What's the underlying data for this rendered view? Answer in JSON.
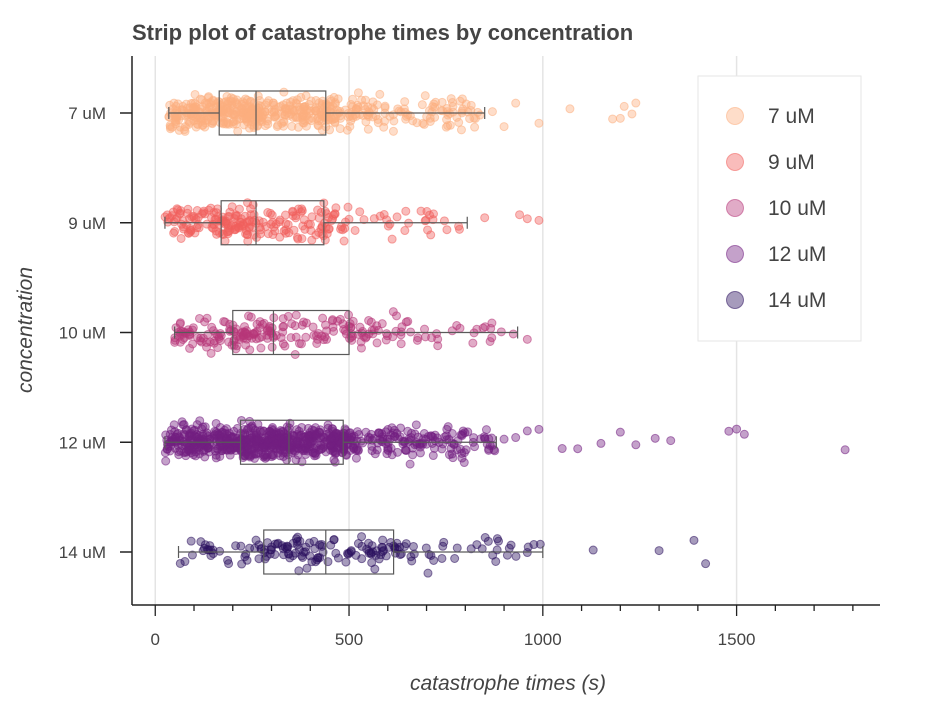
{
  "chart_data": {
    "type": "scatter",
    "subtype": "strip plot with box overlay",
    "title": "Strip plot of catastrophe times by concentration",
    "xlabel": "catastrophe times (s)",
    "ylabel": "concentration",
    "xlim": [
      -60,
      1870
    ],
    "xticks": [
      0,
      500,
      1000,
      1500
    ],
    "categories": [
      "7 uM",
      "9 uM",
      "10 uM",
      "12 uM",
      "14 uM"
    ],
    "grid": "vertical",
    "legend_position": "top-right",
    "series": [
      {
        "name": "7 uM",
        "color": "#fcae7f",
        "n": 530,
        "min": 30,
        "q1": 165,
        "median": 260,
        "q3": 440,
        "whisker_low": 35,
        "whisker_high": 850,
        "outliers": [
          870,
          900,
          930,
          990,
          1070,
          1180,
          1200,
          1210,
          1230,
          1240
        ]
      },
      {
        "name": "9 uM",
        "color": "#f1605d",
        "n": 240,
        "min": 15,
        "q1": 170,
        "median": 260,
        "q3": 435,
        "whisker_low": 25,
        "whisker_high": 805,
        "outliers": [
          850,
          940,
          960,
          990
        ]
      },
      {
        "name": "10 uM",
        "color": "#b73779",
        "n": 230,
        "min": 45,
        "q1": 200,
        "median": 305,
        "q3": 500,
        "whisker_low": 50,
        "whisker_high": 935,
        "outliers": [
          960
        ]
      },
      {
        "name": "12 uM",
        "color": "#721f81",
        "n": 790,
        "min": 25,
        "q1": 220,
        "median": 345,
        "q3": 485,
        "whisker_low": 25,
        "whisker_high": 880,
        "outliers": [
          900,
          930,
          960,
          990,
          1050,
          1090,
          1150,
          1200,
          1240,
          1290,
          1330,
          1480,
          1500,
          1520,
          1780
        ]
      },
      {
        "name": "14 uM",
        "color": "#2c115f",
        "n": 170,
        "min": 60,
        "q1": 280,
        "median": 440,
        "q3": 615,
        "whisker_low": 60,
        "whisker_high": 1000,
        "outliers": [
          1130,
          1300,
          1390,
          1420
        ]
      }
    ]
  }
}
